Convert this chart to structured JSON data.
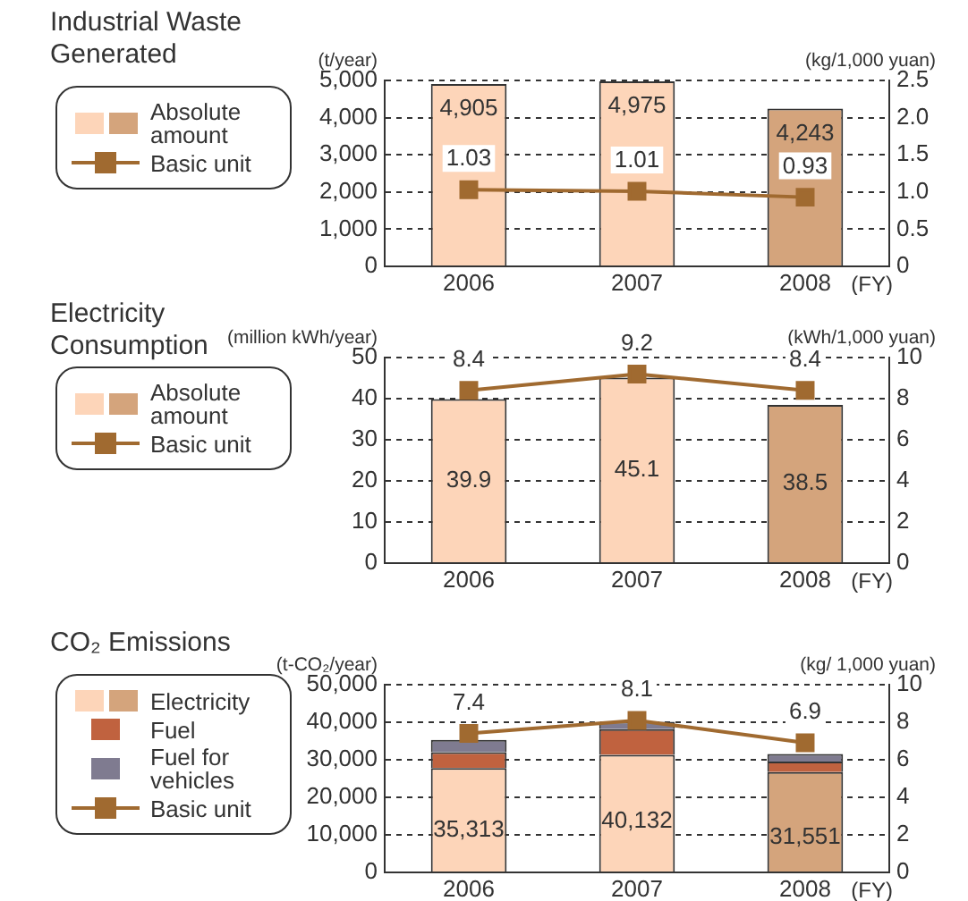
{
  "chart_data": [
    {
      "type": "bar",
      "title": "Industrial Waste Generated",
      "ylabel": "(t/year)",
      "y2label": "(kg/1,000 yuan)",
      "xlabel": "(FY)",
      "categories": [
        "2006",
        "2007",
        "2008"
      ],
      "series": [
        {
          "name": "Absolute amount",
          "colors": [
            "#fdd5b9",
            "#fdd5b9",
            "#d4a47c"
          ],
          "values": [
            4905,
            4975,
            4243
          ],
          "value_labels": [
            "4,905",
            "4,975",
            "4,243"
          ]
        },
        {
          "name": "Basic unit",
          "type": "line",
          "axis": "y2",
          "color": "#a06a30",
          "values": [
            1.03,
            1.01,
            0.93
          ],
          "value_labels": [
            "1.03",
            "1.01",
            "0.93"
          ]
        }
      ],
      "ylim": [
        0,
        5000
      ],
      "yticks": [
        0,
        {
          "value": 1000,
          "label": "1,000"
        },
        {
          "value": 2000,
          "label": "2,000"
        },
        {
          "value": 3000,
          "label": "3,000"
        },
        {
          "value": 4000,
          "label": "4,000"
        },
        {
          "value": 5000,
          "label": "5,000"
        }
      ],
      "y2lim": [
        0,
        2.5
      ],
      "y2ticks": [
        0,
        0.5,
        {
          "value": 1,
          "label": "1.0"
        },
        1.5,
        {
          "value": 2,
          "label": "2.0"
        },
        2.5
      ],
      "grid": "y",
      "legend": "left",
      "marker": "square"
    },
    {
      "type": "bar",
      "title": "Electricity Consumption",
      "ylabel": "(million kWh/year)",
      "y2label": "(kWh/1,000 yuan)",
      "xlabel": "(FY)",
      "categories": [
        "2006",
        "2007",
        "2008"
      ],
      "series": [
        {
          "name": "Absolute amount",
          "colors": [
            "#fdd5b9",
            "#fdd5b9",
            "#d4a47c"
          ],
          "values": [
            39.9,
            45.1,
            38.5
          ],
          "value_labels": [
            "39.9",
            "45.1",
            "38.5"
          ]
        },
        {
          "name": "Basic unit",
          "type": "line",
          "axis": "y2",
          "color": "#a06a30",
          "values": [
            8.4,
            9.2,
            8.4
          ],
          "value_labels": [
            "8.4",
            "9.2",
            "8.4"
          ]
        }
      ],
      "ylim": [
        0,
        50
      ],
      "yticks": [
        0,
        10,
        20,
        30,
        40,
        50
      ],
      "y2lim": [
        0,
        10
      ],
      "y2ticks": [
        0,
        2,
        4,
        6,
        8,
        10
      ],
      "grid": "y",
      "legend": "left",
      "marker": "square"
    },
    {
      "type": "bar",
      "title": "CO₂ Emissions",
      "ylabel": "(t-CO₂/year)",
      "y2label": "(kg/ 1,000 yuan)",
      "xlabel": "(FY)",
      "categories": [
        "2006",
        "2007",
        "2008"
      ],
      "series": [
        {
          "name": "Electricity",
          "colors": [
            "#fdd5b9",
            "#fdd5b9",
            "#d4a47c"
          ],
          "values": [
            27813,
            31332,
            26751
          ]
        },
        {
          "name": "Fuel",
          "color": "#c0623f",
          "values": [
            4200,
            6800,
            2800
          ]
        },
        {
          "name": "Fuel for vehicles",
          "color": "#7f7b90",
          "values": [
            3300,
            2000,
            2000
          ]
        },
        {
          "name": "Basic unit",
          "type": "line",
          "axis": "y2",
          "color": "#a06a30",
          "values": [
            7.4,
            8.1,
            6.9
          ],
          "value_labels": [
            "7.4",
            "8.1",
            "6.9"
          ]
        }
      ],
      "stacked": true,
      "totals": [
        "35,313",
        "40,132",
        "31,551"
      ],
      "ylim": [
        0,
        50000
      ],
      "yticks": [
        0,
        {
          "value": 10000,
          "label": "10,000"
        },
        {
          "value": 20000,
          "label": "20,000"
        },
        {
          "value": 30000,
          "label": "30,000"
        },
        {
          "value": 40000,
          "label": "40,000"
        },
        {
          "value": 50000,
          "label": "50,000"
        }
      ],
      "y2lim": [
        0,
        10
      ],
      "y2ticks": [
        0,
        2,
        4,
        6,
        8,
        10
      ],
      "grid": "y",
      "legend": "left",
      "marker": "square"
    }
  ]
}
